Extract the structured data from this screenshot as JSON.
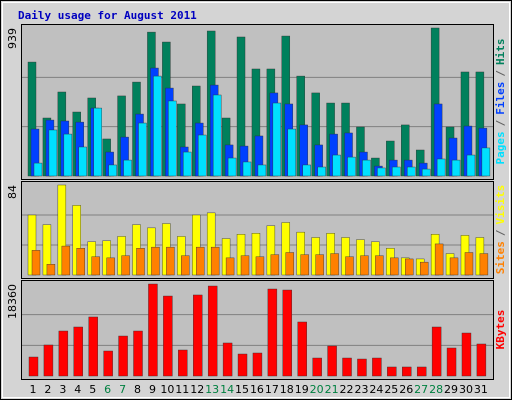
{
  "chart_data": [
    {
      "type": "bar",
      "title": "Daily usage for August 2011",
      "title_color": "#0000c0",
      "ylim": [
        0,
        939
      ],
      "yticks": [
        939
      ],
      "grid": true,
      "legend_separator": "/",
      "separator_color": "#606060",
      "series": [
        {
          "name": "Pages",
          "color": "#00e0ff",
          "values": [
            82,
            292,
            266,
            184,
            431,
            70,
            101,
            336,
            634,
            476,
            152,
            260,
            514,
            114,
            89,
            70,
            463,
            298,
            70,
            57,
            133,
            120,
            101,
            51,
            57,
            57,
            44,
            108,
            101,
            133,
            178
          ]
        },
        {
          "name": "Files",
          "color": "#0040ff",
          "values": [
            298,
            355,
            349,
            342,
            431,
            152,
            247,
            393,
            685,
            558,
            184,
            336,
            577,
            197,
            190,
            254,
            527,
            457,
            324,
            197,
            266,
            273,
            152,
            63,
            101,
            101,
            82,
            457,
            241,
            317,
            304
          ]
        },
        {
          "name": "Hits",
          "color": "#00805c",
          "values": [
            723,
            368,
            533,
            406,
            495,
            235,
            508,
            596,
            913,
            850,
            457,
            571,
            920,
            368,
            882,
            679,
            679,
            888,
            634,
            527,
            463,
            463,
            311,
            114,
            222,
            324,
            165,
            939,
            311,
            660,
            660
          ]
        }
      ]
    },
    {
      "type": "bar",
      "ylim": [
        0,
        84
      ],
      "yticks": [
        84
      ],
      "grid": true,
      "legend_separator": "/",
      "separator_color": "#606060",
      "series": [
        {
          "name": "Sites",
          "color": "#ff8000",
          "values": [
            23,
            10,
            27,
            25,
            17,
            16,
            18,
            25,
            26,
            26,
            18,
            26,
            26,
            16,
            18,
            17,
            19,
            21,
            19,
            19,
            20,
            17,
            18,
            18,
            16,
            15,
            12,
            29,
            16,
            21,
            20
          ]
        },
        {
          "name": "Visits",
          "color": "#ffff00",
          "values": [
            56,
            47,
            84,
            65,
            31,
            32,
            36,
            47,
            44,
            48,
            36,
            56,
            58,
            34,
            38,
            39,
            46,
            49,
            40,
            35,
            39,
            35,
            33,
            31,
            25,
            16,
            15,
            38,
            20,
            37,
            35
          ]
        }
      ]
    },
    {
      "type": "bar",
      "ylim": [
        0,
        18360
      ],
      "yticks": [
        18360
      ],
      "grid": true,
      "categories": [
        "1",
        "2",
        "3",
        "4",
        "5",
        "6",
        "7",
        "8",
        "9",
        "10",
        "11",
        "12",
        "13",
        "14",
        "15",
        "16",
        "17",
        "18",
        "19",
        "20",
        "21",
        "22",
        "23",
        "24",
        "25",
        "26",
        "27",
        "28",
        "29",
        "30",
        "31"
      ],
      "category_colors": [
        "#000",
        "#000",
        "#000",
        "#000",
        "#000",
        "#008040",
        "#008040",
        "#000",
        "#000",
        "#000",
        "#000",
        "#000",
        "#008040",
        "#008040",
        "#000",
        "#000",
        "#000",
        "#000",
        "#000",
        "#008040",
        "#008040",
        "#000",
        "#000",
        "#000",
        "#000",
        "#000",
        "#008040",
        "#008040",
        "#000",
        "#000",
        "#000"
      ],
      "series": [
        {
          "name": "KBytes",
          "color": "#ff0000",
          "values": [
            3790,
            6190,
            8980,
            9780,
            11780,
            4990,
            7980,
            8980,
            18360,
            15960,
            5190,
            16170,
            17960,
            6590,
            4390,
            4590,
            17360,
            17160,
            10780,
            3590,
            5990,
            3590,
            3390,
            3590,
            1800,
            1800,
            1800,
            9780,
            5590,
            8580,
            6390
          ]
        }
      ]
    }
  ]
}
